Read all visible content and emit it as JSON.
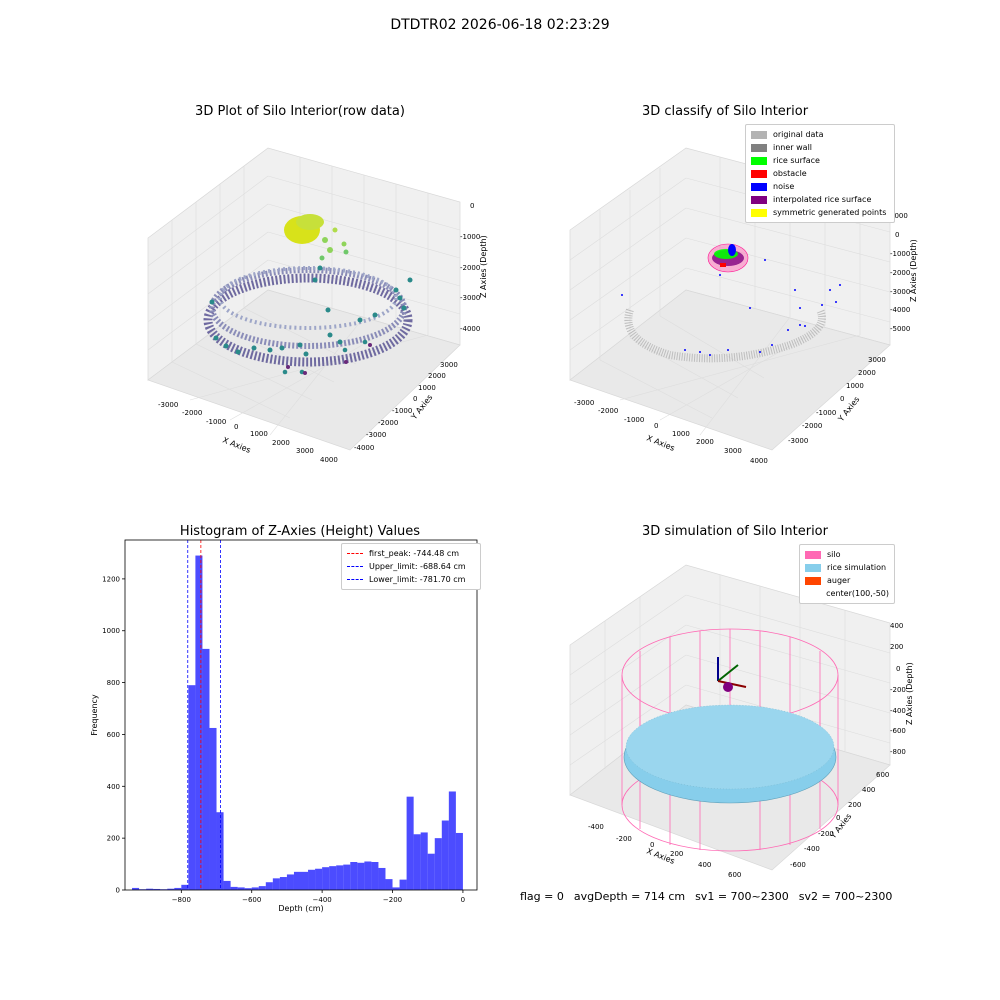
{
  "suptitle": "DTDTR02 2026-06-18 02:23:29",
  "panels": {
    "raw": {
      "title": "3D Plot of Silo Interior(row data)",
      "x_label": "X Axies",
      "y_label": "Y Axies",
      "z_label": "Z Axies (Depth)",
      "x_ticks": [
        "-3000",
        "-2000",
        "-1000",
        "0",
        "1000",
        "2000",
        "3000",
        "4000"
      ],
      "y_ticks": [
        "3000",
        "2000",
        "1000",
        "0",
        "-1000",
        "-2000",
        "-3000",
        "-4000"
      ],
      "z_ticks": [
        "0",
        "-1000",
        "-2000",
        "-3000",
        "-4000"
      ]
    },
    "classify": {
      "title": "3D classify of Silo Interior",
      "x_label": "X Axies",
      "y_label": "Y Axies",
      "z_label": "Z Axies (Depth)",
      "x_ticks": [
        "-3000",
        "-2000",
        "-1000",
        "0",
        "1000",
        "2000",
        "3000",
        "4000"
      ],
      "y_ticks": [
        "3000",
        "2000",
        "1000",
        "0",
        "-1000",
        "-2000",
        "-3000"
      ],
      "z_ticks": [
        "1000",
        "0",
        "-1000",
        "-2000",
        "-3000",
        "-4000",
        "-5000"
      ],
      "legend": [
        {
          "label": "original data",
          "color": "#b3b3b3"
        },
        {
          "label": "inner wall",
          "color": "#808080"
        },
        {
          "label": "rice surface",
          "color": "#00ff00"
        },
        {
          "label": "obstacle",
          "color": "#ff0000"
        },
        {
          "label": "noise",
          "color": "#0000ff"
        },
        {
          "label": "interpolated rice surface",
          "color": "#800080"
        },
        {
          "label": "symmetric generated points",
          "color": "#ffff00"
        }
      ]
    },
    "simulation": {
      "title": "3D simulation of Silo Interior",
      "x_label": "X Axies",
      "y_label": "Y Axies",
      "z_label": "Z Axies (Depth)",
      "x_ticks": [
        "-400",
        "-200",
        "0",
        "200",
        "400",
        "600"
      ],
      "y_ticks": [
        "600",
        "400",
        "200",
        "0",
        "-200",
        "-400",
        "-600"
      ],
      "z_ticks": [
        "400",
        "200",
        "0",
        "-200",
        "-400",
        "-600",
        "-800"
      ],
      "legend": [
        {
          "label": "silo",
          "color": "#ff69b4"
        },
        {
          "label": "rice simulation",
          "color": "#87ceeb"
        },
        {
          "label": "auger",
          "color": "#ff4500"
        },
        {
          "label": "center(100,-50)",
          "color": ""
        }
      ]
    }
  },
  "chart_data": {
    "type": "bar",
    "title": "Histogram of Z-Axies (Height) Values",
    "xlabel": "Depth (cm)",
    "ylabel": "Frequency",
    "xlim": [
      -960,
      40
    ],
    "ylim": [
      0,
      1350
    ],
    "x_ticks": [
      -800,
      -600,
      -400,
      -200,
      0
    ],
    "y_ticks": [
      0,
      200,
      400,
      600,
      800,
      1000,
      1200
    ],
    "bar_color": "#0000ff",
    "bin_width": 20,
    "bins": [
      {
        "x": -930,
        "v": 8
      },
      {
        "x": -910,
        "v": 3
      },
      {
        "x": -890,
        "v": 5
      },
      {
        "x": -870,
        "v": 4
      },
      {
        "x": -850,
        "v": 3
      },
      {
        "x": -830,
        "v": 5
      },
      {
        "x": -810,
        "v": 8
      },
      {
        "x": -790,
        "v": 20
      },
      {
        "x": -770,
        "v": 790
      },
      {
        "x": -750,
        "v": 1290
      },
      {
        "x": -730,
        "v": 930
      },
      {
        "x": -710,
        "v": 625
      },
      {
        "x": -690,
        "v": 300
      },
      {
        "x": -670,
        "v": 35
      },
      {
        "x": -650,
        "v": 12
      },
      {
        "x": -630,
        "v": 10
      },
      {
        "x": -610,
        "v": 7
      },
      {
        "x": -590,
        "v": 10
      },
      {
        "x": -570,
        "v": 15
      },
      {
        "x": -550,
        "v": 30
      },
      {
        "x": -530,
        "v": 45
      },
      {
        "x": -510,
        "v": 50
      },
      {
        "x": -490,
        "v": 60
      },
      {
        "x": -470,
        "v": 70
      },
      {
        "x": -450,
        "v": 70
      },
      {
        "x": -430,
        "v": 78
      },
      {
        "x": -410,
        "v": 82
      },
      {
        "x": -390,
        "v": 88
      },
      {
        "x": -370,
        "v": 92
      },
      {
        "x": -350,
        "v": 95
      },
      {
        "x": -330,
        "v": 98
      },
      {
        "x": -310,
        "v": 108
      },
      {
        "x": -290,
        "v": 105
      },
      {
        "x": -270,
        "v": 110
      },
      {
        "x": -250,
        "v": 108
      },
      {
        "x": -230,
        "v": 85
      },
      {
        "x": -210,
        "v": 42
      },
      {
        "x": -190,
        "v": 10
      },
      {
        "x": -170,
        "v": 40
      },
      {
        "x": -150,
        "v": 360
      },
      {
        "x": -130,
        "v": 215
      },
      {
        "x": -110,
        "v": 222
      },
      {
        "x": -90,
        "v": 140
      },
      {
        "x": -70,
        "v": 200
      },
      {
        "x": -50,
        "v": 268
      },
      {
        "x": -30,
        "v": 380
      },
      {
        "x": -10,
        "v": 220
      }
    ],
    "lines": [
      {
        "label": "first_peak: -744.48 cm",
        "x": -744.48,
        "color": "#ff0000"
      },
      {
        "label": "Upper_limit: -688.64 cm",
        "x": -688.64,
        "color": "#0000ff"
      },
      {
        "label": "Lower_limit: -781.70 cm",
        "x": -781.7,
        "color": "#0000ff"
      }
    ]
  },
  "footer": {
    "flag": "flag = 0",
    "avg_depth": "avgDepth = 714 cm",
    "sv1": "sv1 = 700~2300",
    "sv2": "sv2 = 700~2300"
  }
}
